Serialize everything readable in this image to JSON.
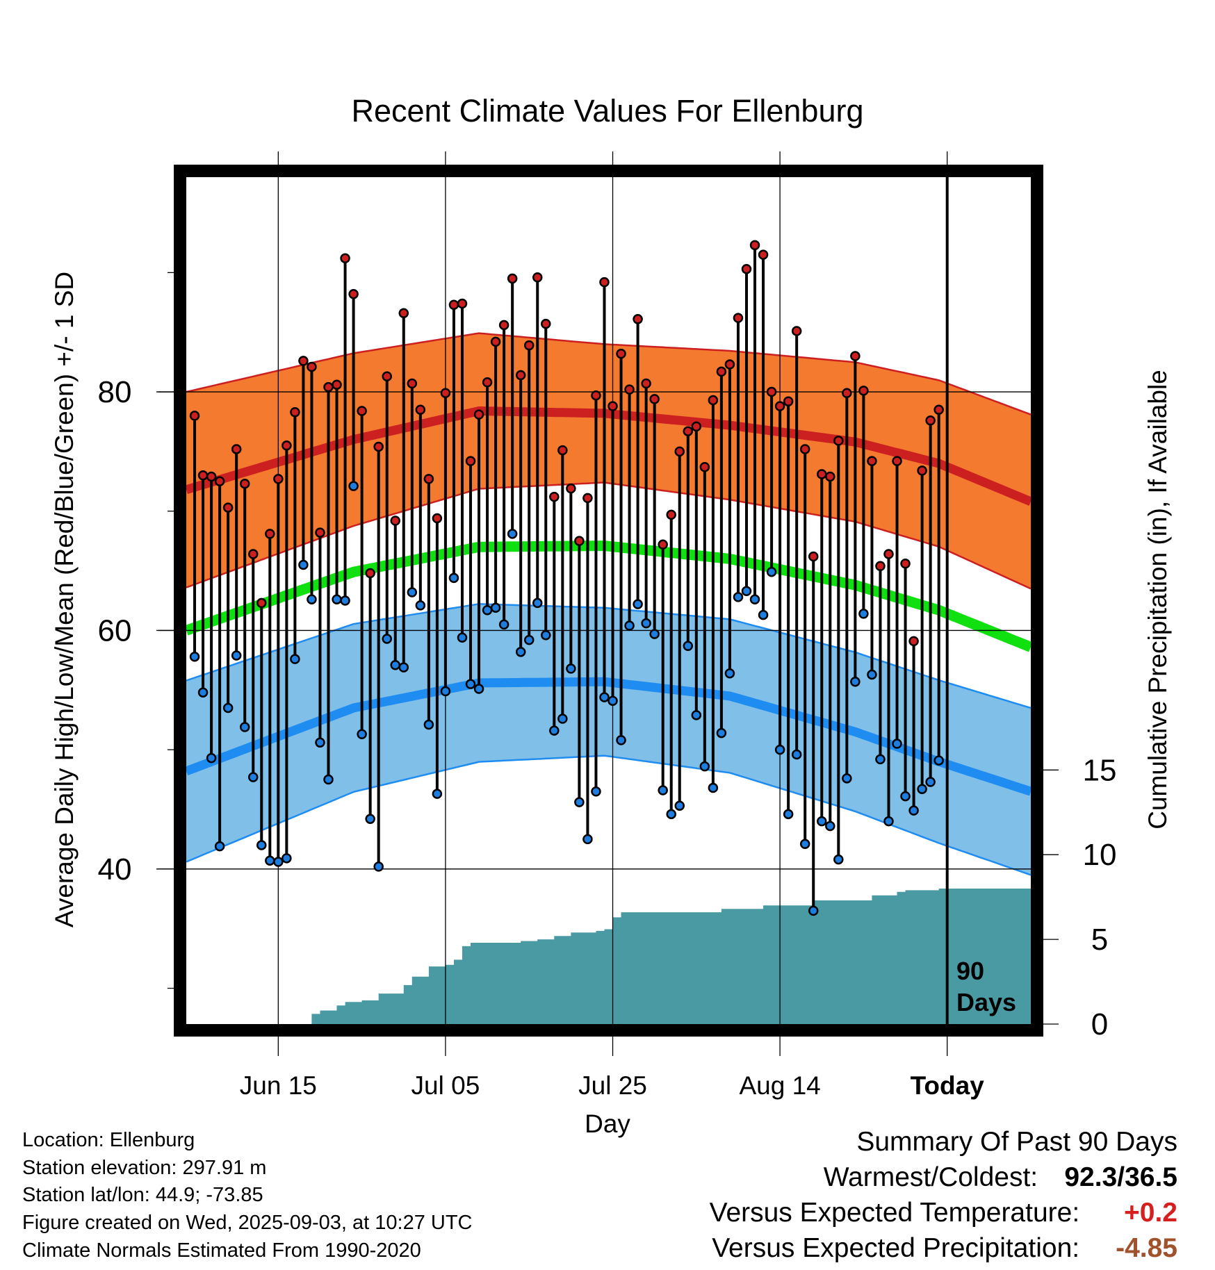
{
  "chart_data": {
    "type": "line",
    "title": "Recent Climate Values For Ellenburg",
    "xlabel": "Day",
    "ylabel_left": "Average Daily High/Low/Mean (Red/Blue/Green) +/- 1 SD",
    "ylabel_right": "Cumulative Precipitation (in), If Available",
    "x_tick_labels": [
      "Jun 15",
      "Jul 05",
      "Jul 25",
      "Aug 14",
      "Today"
    ],
    "x_tick_days": [
      11,
      31,
      51,
      71,
      91
    ],
    "y_ticks": [
      40,
      60,
      80
    ],
    "ylim": [
      27,
      98
    ],
    "precip_ticks": [
      0,
      5,
      10,
      15
    ],
    "precip_lim": [
      0,
      50
    ],
    "today_marker_label": [
      "90",
      "Days"
    ],
    "today_day": 91,
    "x_range_days": [
      0,
      101
    ],
    "normals": {
      "high": [
        [
          0,
          71.8
        ],
        [
          20,
          76
        ],
        [
          35,
          78.4
        ],
        [
          50,
          78.2
        ],
        [
          65,
          77.2
        ],
        [
          80,
          75.8
        ],
        [
          90,
          74
        ],
        [
          101,
          70.8
        ]
      ],
      "high_sd": [
        [
          0,
          8.2
        ],
        [
          50,
          5.8
        ],
        [
          101,
          7.3
        ]
      ],
      "low": [
        [
          0,
          48.2
        ],
        [
          20,
          53.5
        ],
        [
          35,
          55.6
        ],
        [
          50,
          55.7
        ],
        [
          65,
          54.5
        ],
        [
          80,
          51.5
        ],
        [
          90,
          49
        ],
        [
          101,
          46.5
        ]
      ],
      "low_sd": [
        [
          0,
          7.6
        ],
        [
          50,
          6.2
        ],
        [
          101,
          7.0
        ]
      ],
      "mean": [
        [
          0,
          60
        ],
        [
          20,
          64.9
        ],
        [
          35,
          67
        ],
        [
          50,
          67.1
        ],
        [
          65,
          66
        ],
        [
          80,
          63.8
        ],
        [
          90,
          61.7
        ],
        [
          101,
          58.6
        ]
      ]
    },
    "daily": [
      {
        "day": 1,
        "high": 78,
        "low": 57.8
      },
      {
        "day": 2,
        "high": 73,
        "low": 54.8
      },
      {
        "day": 3,
        "high": 72.9,
        "low": 49.3
      },
      {
        "day": 4,
        "high": 72.5,
        "low": 41.9
      },
      {
        "day": 5,
        "high": 70.3,
        "low": 53.5
      },
      {
        "day": 6,
        "high": 75.2,
        "low": 57.9
      },
      {
        "day": 7,
        "high": 72.3,
        "low": 51.9
      },
      {
        "day": 8,
        "high": 66.4,
        "low": 47.7
      },
      {
        "day": 9,
        "high": 62.3,
        "low": 42
      },
      {
        "day": 10,
        "high": 68.1,
        "low": 40.7
      },
      {
        "day": 11,
        "high": 72.7,
        "low": 40.6
      },
      {
        "day": 12,
        "high": 75.5,
        "low": 40.9
      },
      {
        "day": 13,
        "high": 78.3,
        "low": 57.6
      },
      {
        "day": 14,
        "high": 82.6,
        "low": 65.5
      },
      {
        "day": 15,
        "high": 82.1,
        "low": 62.6
      },
      {
        "day": 16,
        "high": 68.2,
        "low": 50.6
      },
      {
        "day": 17,
        "high": 80.4,
        "low": 47.5
      },
      {
        "day": 18,
        "high": 80.6,
        "low": 62.6
      },
      {
        "day": 19,
        "high": 91.2,
        "low": 62.5
      },
      {
        "day": 20,
        "high": 88.2,
        "low": 72.1
      },
      {
        "day": 21,
        "high": 78.4,
        "low": 51.3
      },
      {
        "day": 22,
        "high": 64.8,
        "low": 44.2
      },
      {
        "day": 23,
        "high": 75.4,
        "low": 40.2
      },
      {
        "day": 24,
        "high": 81.3,
        "low": 59.3
      },
      {
        "day": 25,
        "high": 69.2,
        "low": 57.1
      },
      {
        "day": 26,
        "high": 86.6,
        "low": 56.9
      },
      {
        "day": 27,
        "high": 80.7,
        "low": 63.2
      },
      {
        "day": 28,
        "high": 78.5,
        "low": 62.1
      },
      {
        "day": 29,
        "high": 72.7,
        "low": 52.1
      },
      {
        "day": 30,
        "high": 69.4,
        "low": 46.3
      },
      {
        "day": 31,
        "high": 79.9,
        "low": 54.9
      },
      {
        "day": 32,
        "high": 87.3,
        "low": 64.4
      },
      {
        "day": 33,
        "high": 87.4,
        "low": 59.4
      },
      {
        "day": 34,
        "high": 74.2,
        "low": 55.5
      },
      {
        "day": 35,
        "high": 78.1,
        "low": 55.1
      },
      {
        "day": 36,
        "high": 80.8,
        "low": 61.7
      },
      {
        "day": 37,
        "high": 84.2,
        "low": 61.9
      },
      {
        "day": 38,
        "high": 85.6,
        "low": 60.5
      },
      {
        "day": 39,
        "high": 89.5,
        "low": 68.1
      },
      {
        "day": 40,
        "high": 81.4,
        "low": 58.2
      },
      {
        "day": 41,
        "high": 83.9,
        "low": 59.2
      },
      {
        "day": 42,
        "high": 89.6,
        "low": 62.3
      },
      {
        "day": 43,
        "high": 85.7,
        "low": 59.6
      },
      {
        "day": 44,
        "high": 71.2,
        "low": 51.6
      },
      {
        "day": 45,
        "high": 75.1,
        "low": 52.6
      },
      {
        "day": 46,
        "high": 71.9,
        "low": 56.8
      },
      {
        "day": 47,
        "high": 67.5,
        "low": 45.6
      },
      {
        "day": 48,
        "high": 71.1,
        "low": 42.5
      },
      {
        "day": 49,
        "high": 79.7,
        "low": 46.5
      },
      {
        "day": 50,
        "high": 89.2,
        "low": 54.4
      },
      {
        "day": 51,
        "high": 78.8,
        "low": 54.1
      },
      {
        "day": 52,
        "high": 83.2,
        "low": 50.8
      },
      {
        "day": 53,
        "high": 80.2,
        "low": 60.4
      },
      {
        "day": 54,
        "high": 86.1,
        "low": 62.2
      },
      {
        "day": 55,
        "high": 80.7,
        "low": 60.6
      },
      {
        "day": 56,
        "high": 79.4,
        "low": 59.7
      },
      {
        "day": 57,
        "high": 67.2,
        "low": 46.6
      },
      {
        "day": 58,
        "high": 69.7,
        "low": 44.6
      },
      {
        "day": 59,
        "high": 75,
        "low": 45.3
      },
      {
        "day": 60,
        "high": 76.7,
        "low": 58.7
      },
      {
        "day": 61,
        "high": 77.1,
        "low": 52.9
      },
      {
        "day": 62,
        "high": 73.7,
        "low": 48.6
      },
      {
        "day": 63,
        "high": 79.3,
        "low": 46.8
      },
      {
        "day": 64,
        "high": 81.7,
        "low": 51.4
      },
      {
        "day": 65,
        "high": 82.3,
        "low": 56.4
      },
      {
        "day": 66,
        "high": 86.2,
        "low": 62.8
      },
      {
        "day": 67,
        "high": 90.3,
        "low": 63.3
      },
      {
        "day": 68,
        "high": 92.3,
        "low": 62.6
      },
      {
        "day": 69,
        "high": 91.5,
        "low": 61.3
      },
      {
        "day": 70,
        "high": 80,
        "low": 64.9
      },
      {
        "day": 71,
        "high": 78.8,
        "low": 50
      },
      {
        "day": 72,
        "high": 79.2,
        "low": 44.6
      },
      {
        "day": 73,
        "high": 85.1,
        "low": 49.6
      },
      {
        "day": 74,
        "high": 75.2,
        "low": 42.1
      },
      {
        "day": 75,
        "high": 66.2,
        "low": 36.5
      },
      {
        "day": 76,
        "high": 73.1,
        "low": 44
      },
      {
        "day": 77,
        "high": 72.9,
        "low": 43.6
      },
      {
        "day": 78,
        "high": 75.9,
        "low": 40.8
      },
      {
        "day": 79,
        "high": 79.9,
        "low": 47.6
      },
      {
        "day": 80,
        "high": 83,
        "low": 55.7
      },
      {
        "day": 81,
        "high": 80.1,
        "low": 61.4
      },
      {
        "day": 82,
        "high": 74.2,
        "low": 56.3
      },
      {
        "day": 83,
        "high": 65.4,
        "low": 49.2
      },
      {
        "day": 84,
        "high": 66.4,
        "low": 44
      },
      {
        "day": 85,
        "high": 74.2,
        "low": 50.5
      },
      {
        "day": 86,
        "high": 65.6,
        "low": 46.1
      },
      {
        "day": 87,
        "high": 59.1,
        "low": 44.9
      },
      {
        "day": 88,
        "high": 73.4,
        "low": 46.7
      },
      {
        "day": 89,
        "high": 77.6,
        "low": 47.3
      },
      {
        "day": 90,
        "high": 78.5,
        "low": 49.1
      }
    ],
    "precip_cumulative": [
      [
        0,
        0
      ],
      [
        14,
        0
      ],
      [
        15,
        0.6
      ],
      [
        16,
        0.8
      ],
      [
        18,
        1.1
      ],
      [
        19,
        1.3
      ],
      [
        21,
        1.4
      ],
      [
        23,
        1.8
      ],
      [
        26,
        2.3
      ],
      [
        27,
        2.8
      ],
      [
        29,
        3.4
      ],
      [
        31,
        3.5
      ],
      [
        32,
        3.8
      ],
      [
        33,
        4.6
      ],
      [
        34,
        4.8
      ],
      [
        40,
        4.9
      ],
      [
        42,
        5.0
      ],
      [
        44,
        5.2
      ],
      [
        46,
        5.4
      ],
      [
        49,
        5.5
      ],
      [
        50,
        5.6
      ],
      [
        51,
        6.3
      ],
      [
        52,
        6.6
      ],
      [
        53,
        6.6
      ],
      [
        64,
        6.8
      ],
      [
        66,
        6.8
      ],
      [
        69,
        7.0
      ],
      [
        71,
        7.0
      ],
      [
        73,
        7.0
      ],
      [
        75,
        7.3
      ],
      [
        80,
        7.3
      ],
      [
        82,
        7.6
      ],
      [
        85,
        7.8
      ],
      [
        86,
        7.9
      ],
      [
        90,
        8.0
      ],
      [
        101,
        8.0
      ]
    ],
    "grid": true,
    "colors": {
      "high_band": "#f47a30",
      "high_line": "#cc2020",
      "low_band": "#7fbfe8",
      "low_line": "#1e8cf0",
      "mean_line": "#10e010",
      "high_dot": "#cc2020",
      "low_dot": "#1e7ee0",
      "precip_fill": "#4a9aa4",
      "frame": "#000000"
    }
  },
  "footer": {
    "location": "Location: Ellenburg",
    "elevation": "Station elevation: 297.91 m",
    "latlon": "Station lat/lon: 44.9; -73.85",
    "created": "Figure created on Wed, 2025-09-03, at 10:27 UTC",
    "normals": "Climate Normals Estimated From 1990-2020"
  },
  "summary": {
    "heading": "Summary Of Past 90 Days",
    "warmest_label": "Warmest/Coldest:",
    "warmest_value": "92.3/36.5",
    "temp_label": "Versus Expected Temperature:",
    "temp_value": "+0.2",
    "temp_color": "#d62020",
    "precip_label": "Versus Expected Precipitation:",
    "precip_value": "-4.85",
    "precip_color": "#a0522d"
  }
}
